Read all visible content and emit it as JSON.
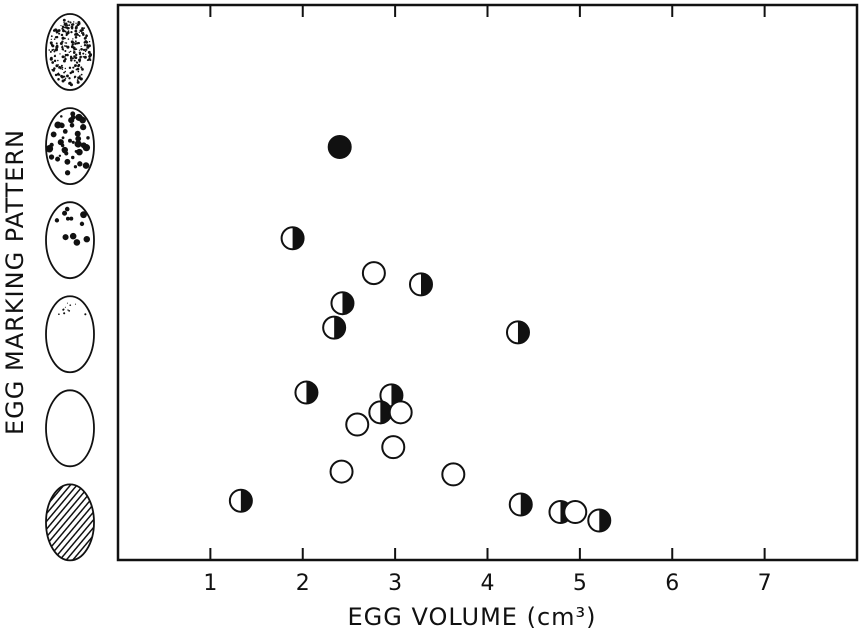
{
  "chart_data": {
    "type": "scatter",
    "x_label": "EGG VOLUME (cm³)",
    "y_label": "EGG MARKING PATTERN",
    "xlim": [
      0,
      8
    ],
    "xticks": [
      1,
      2,
      3,
      4,
      5,
      6,
      7
    ],
    "ylim": [
      0.6,
      6.5
    ],
    "yticks": [
      1,
      2,
      3,
      4,
      5,
      6
    ],
    "series": [
      {
        "marker": "filled",
        "color": "#111111",
        "x": [
          2.4
        ],
        "y": [
          4.99
        ]
      },
      {
        "marker": "half",
        "color": "#111111",
        "x": [
          1.89,
          3.28,
          2.43,
          2.34,
          4.33,
          2.04,
          2.96,
          2.84,
          1.33,
          4.36,
          4.79,
          5.21
        ],
        "y": [
          4.02,
          3.53,
          3.33,
          3.07,
          3.02,
          2.38,
          2.35,
          2.17,
          1.23,
          1.19,
          1.11,
          1.02
        ]
      },
      {
        "marker": "open",
        "color": "#111111",
        "x": [
          2.77,
          3.06,
          2.59,
          2.98,
          2.42,
          3.63,
          4.95
        ],
        "y": [
          3.65,
          2.17,
          2.04,
          1.8,
          1.54,
          1.51,
          1.11
        ]
      }
    ]
  }
}
